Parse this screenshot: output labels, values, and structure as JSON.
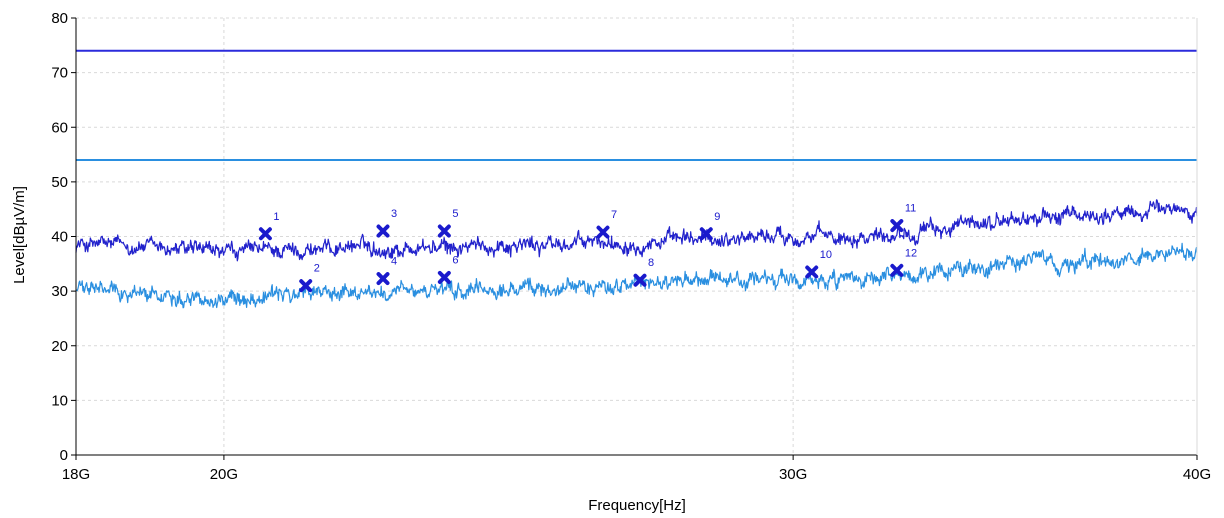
{
  "chart_data": {
    "type": "line",
    "title": "",
    "xlabel": "Frequency[Hz]",
    "ylabel": "Level[dBµV/m]",
    "x_scale": "log",
    "xlim": [
      18000000000,
      40000000000
    ],
    "ylim": [
      0,
      80
    ],
    "grid": true,
    "x_ticks": [
      {
        "value": 18000000000,
        "label": "18G"
      },
      {
        "value": 20000000000,
        "label": "20G"
      },
      {
        "value": 30000000000,
        "label": "30G"
      },
      {
        "value": 40000000000,
        "label": "40G"
      }
    ],
    "y_ticks": [
      {
        "value": 0,
        "label": "0"
      },
      {
        "value": 10,
        "label": "10"
      },
      {
        "value": 20,
        "label": "20"
      },
      {
        "value": 30,
        "label": "30"
      },
      {
        "value": 40,
        "label": "40"
      },
      {
        "value": 50,
        "label": "50"
      },
      {
        "value": 60,
        "label": "60"
      },
      {
        "value": 70,
        "label": "70"
      },
      {
        "value": 80,
        "label": "80"
      }
    ],
    "limit_lines": [
      {
        "value": 74,
        "color": "#2b2bdc"
      },
      {
        "value": 54,
        "color": "#2a8fe0"
      }
    ],
    "series": [
      {
        "color": "#2222cc",
        "x": [
          18000000000,
          18500000000,
          19000000000,
          19500000000,
          20000000000,
          20500000000,
          21000000000,
          21500000000,
          22000000000,
          22500000000,
          23000000000,
          23500000000,
          24000000000,
          24500000000,
          25000000000,
          25500000000,
          26000000000,
          26500000000,
          27000000000,
          27500000000,
          28000000000,
          28500000000,
          29000000000,
          29500000000,
          30000000000,
          31000000000,
          32000000000,
          33000000000,
          34000000000,
          35000000000,
          36000000000,
          37000000000,
          38000000000,
          39000000000,
          40000000000
        ],
        "values": [
          38.5,
          38.5,
          38.0,
          37.5,
          37.0,
          37.5,
          37.5,
          37.8,
          38.5,
          37.5,
          38.0,
          37.8,
          38.2,
          38.5,
          38.5,
          38.5,
          39.0,
          38.8,
          39.0,
          39.2,
          39.5,
          39.5,
          40.0,
          40.2,
          40.0,
          40.0,
          40.5,
          41.0,
          42.0,
          43.0,
          43.5,
          44.0,
          44.0,
          45.0,
          45.0
        ]
      },
      {
        "color": "#2a8fe0",
        "x": [
          18000000000,
          18500000000,
          19000000000,
          19500000000,
          20000000000,
          20500000000,
          21000000000,
          21500000000,
          22000000000,
          22500000000,
          23000000000,
          23500000000,
          24000000000,
          24500000000,
          25000000000,
          25500000000,
          26000000000,
          26500000000,
          27000000000,
          27500000000,
          28000000000,
          28500000000,
          29000000000,
          29500000000,
          30000000000,
          31000000000,
          32000000000,
          33000000000,
          34000000000,
          35000000000,
          36000000000,
          37000000000,
          38000000000,
          39000000000,
          40000000000
        ],
        "values": [
          30.5,
          30.0,
          29.5,
          29.0,
          28.5,
          29.0,
          29.5,
          29.8,
          30.0,
          29.5,
          30.0,
          29.8,
          30.0,
          30.2,
          30.5,
          30.8,
          31.0,
          31.0,
          31.2,
          31.5,
          31.5,
          31.8,
          32.0,
          32.0,
          32.0,
          31.5,
          32.0,
          33.0,
          34.0,
          35.0,
          35.5,
          35.0,
          36.0,
          36.5,
          37.0
        ]
      }
    ],
    "markers": [
      {
        "label": "1",
        "x": 20600000000,
        "y": 40.5
      },
      {
        "label": "2",
        "x": 21200000000,
        "y": 31.0
      },
      {
        "label": "3",
        "x": 22400000000,
        "y": 41.0
      },
      {
        "label": "4",
        "x": 22400000000,
        "y": 32.3
      },
      {
        "label": "5",
        "x": 23400000000,
        "y": 41.0
      },
      {
        "label": "6",
        "x": 23400000000,
        "y": 32.5
      },
      {
        "label": "7",
        "x": 26200000000,
        "y": 40.8
      },
      {
        "label": "8",
        "x": 26900000000,
        "y": 32.0
      },
      {
        "label": "9",
        "x": 28200000000,
        "y": 40.5
      },
      {
        "label": "10",
        "x": 30400000000,
        "y": 33.5
      },
      {
        "label": "11",
        "x": 32300000000,
        "y": 42.0
      },
      {
        "label": "12",
        "x": 32300000000,
        "y": 33.8
      }
    ]
  }
}
